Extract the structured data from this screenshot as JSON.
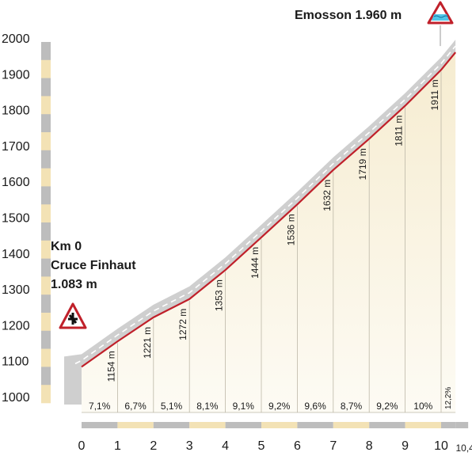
{
  "chart_data": {
    "type": "area",
    "x_unit": "km",
    "y_unit": "m",
    "ylim": [
      1000,
      2000
    ],
    "xlim": [
      0,
      10.4
    ],
    "y_ticks": [
      "1000",
      "1100",
      "1200",
      "1300",
      "1400",
      "1500",
      "1600",
      "1700",
      "1800",
      "1900",
      "2000"
    ],
    "x_ticks": [
      "0",
      "1",
      "2",
      "3",
      "4",
      "5",
      "6",
      "7",
      "8",
      "9",
      "10",
      "10,4"
    ],
    "x": [
      0,
      1,
      2,
      3,
      4,
      5,
      6,
      7,
      8,
      9,
      10,
      10.4
    ],
    "elevation": [
      1083,
      1154,
      1221,
      1272,
      1353,
      1444,
      1536,
      1632,
      1719,
      1811,
      1911,
      1960
    ],
    "elevation_labels": [
      "1154 m",
      "1221 m",
      "1272 m",
      "1353 m",
      "1444 m",
      "1536 m",
      "1632 m",
      "1719 m",
      "1811 m",
      "1911 m"
    ],
    "gradients": [
      "7,1%",
      "6,7%",
      "5,1%",
      "8,1%",
      "9,1%",
      "9,2%",
      "9,6%",
      "8,7%",
      "9,2%",
      "10%",
      "12,2%"
    ],
    "start": {
      "line1": "Km 0",
      "line2": "Cruce Finhaut",
      "line3": "1.083 m"
    },
    "finish": {
      "label": "Emosson 1.960 m"
    },
    "colors": {
      "profile_line": "#c0202a",
      "road_band": "#cfcfcf",
      "band_light": "#f3e2b5",
      "band_dark": "#bdbdbd",
      "fill_top": "#f7efd6",
      "fill_bottom": "#fdfbf3"
    },
    "icons": {
      "start": "hairpin-warning-sign-icon",
      "finish": "lake-warning-sign-icon"
    }
  }
}
